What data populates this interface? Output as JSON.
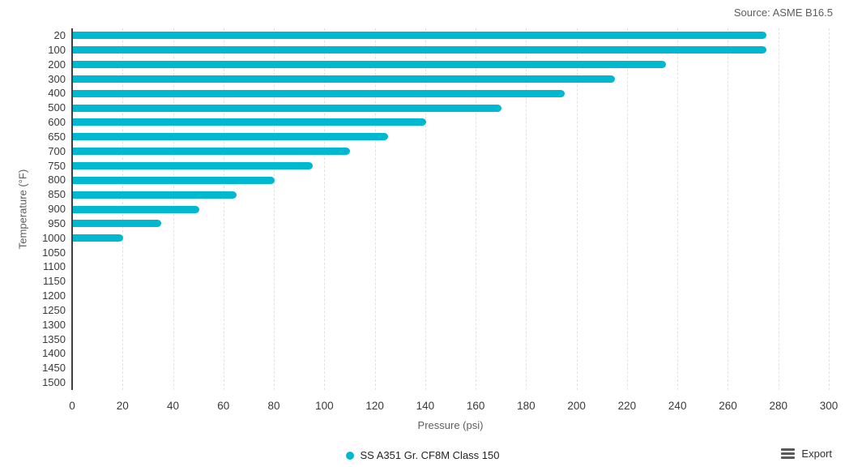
{
  "header": {
    "source": "Source: ASME B16.5"
  },
  "chart_data": {
    "type": "bar",
    "orientation": "horizontal",
    "title": "",
    "xlabel": "Pressure (psi)",
    "ylabel": "Temperature (°F)",
    "xlim": [
      0,
      300
    ],
    "x_ticks": [
      0,
      20,
      40,
      60,
      80,
      100,
      120,
      140,
      160,
      180,
      200,
      220,
      240,
      260,
      280,
      300
    ],
    "grid": "vertical-dashed",
    "bar_color": "#00b9d1",
    "categories": [
      "20",
      "100",
      "200",
      "300",
      "400",
      "500",
      "600",
      "650",
      "700",
      "750",
      "800",
      "850",
      "900",
      "950",
      "1000",
      "1050",
      "1100",
      "1150",
      "1200",
      "1250",
      "1300",
      "1350",
      "1400",
      "1450",
      "1500"
    ],
    "values": [
      275,
      275,
      235,
      215,
      195,
      170,
      140,
      125,
      110,
      95,
      80,
      65,
      50,
      35,
      20,
      0,
      0,
      0,
      0,
      0,
      0,
      0,
      0,
      0,
      0
    ],
    "legend": [
      {
        "label": "SS A351 Gr. CF8M Class 150",
        "color": "#00b9d1"
      }
    ],
    "legend_position": "bottom-center"
  },
  "footer": {
    "export_label": "Export"
  }
}
